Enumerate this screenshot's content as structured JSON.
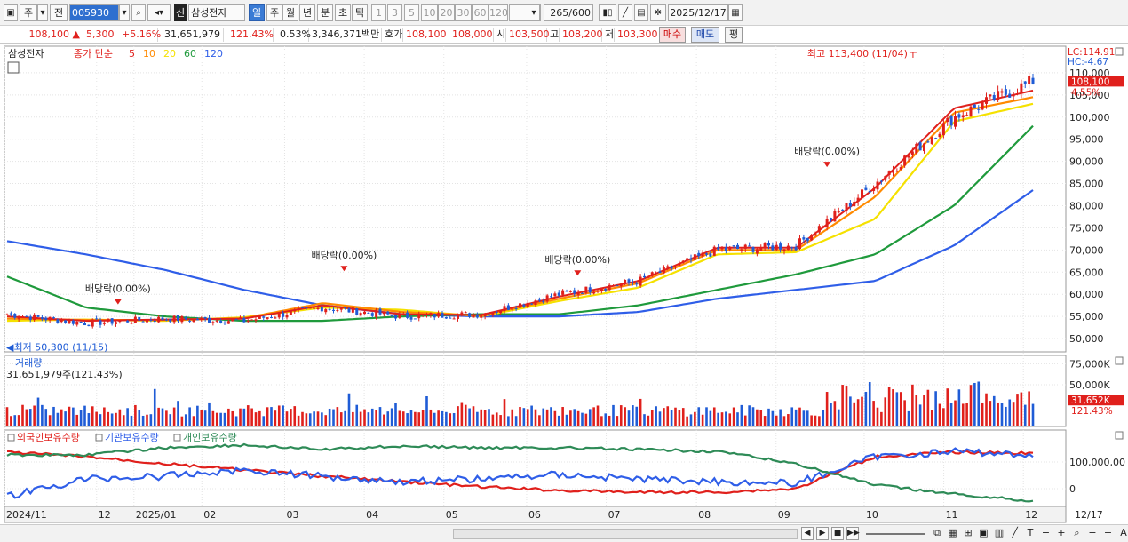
{
  "toolbar": {
    "period": "주",
    "prev": "전",
    "code": "005930",
    "name": "삼성전자",
    "tabs": [
      "일",
      "주",
      "월",
      "년",
      "분",
      "초",
      "틱"
    ],
    "minutes": [
      "1",
      "3",
      "5",
      "10",
      "20",
      "30",
      "60",
      "120"
    ],
    "count": "265",
    "count_max": "/600",
    "date": "2025/12/17"
  },
  "quote": {
    "price": "108,100",
    "arrow": "▲",
    "change": "5,300",
    "pct": "+5.16%",
    "volume": "31,651,979",
    "vol_ratio": "121.43%",
    "turnover": "0.53%",
    "amount": "3,346,371백만",
    "ask_label": "호가",
    "ask": "108,100",
    "bid": "108,000",
    "open_label": "시",
    "open": "103,500",
    "high_label": "고",
    "high": "108,200",
    "low_label": "저",
    "low": "103,300",
    "buy": "매수",
    "sell": "매도",
    "avg": "평"
  },
  "panels": {
    "price": {
      "stock": "삼성전자",
      "ma_prefix": "종가 단순",
      "ma_labels": [
        "5",
        "10",
        "20",
        "60",
        "120"
      ],
      "lc": "LC:114.91",
      "hc": "HC:-4.67",
      "current": "108,100",
      "pct": "4.55%",
      "yticks": [
        "110,000",
        "105,000",
        "100,000",
        "95,000",
        "90,000",
        "85,000",
        "80,000",
        "75,000",
        "70,000",
        "65,000",
        "60,000",
        "55,000",
        "50,000"
      ],
      "annotations": {
        "high": "최고 113,400 (11/04)",
        "low": "최저 50,300 (11/15)",
        "dividends": [
          "배당락(0.00%)",
          "배당락(0.00%)",
          "배당락(0.00%)",
          "배당락(0.00%)"
        ]
      }
    },
    "volume": {
      "title": "거래량",
      "info": "31,651,979주(121.43%)",
      "yticks": [
        "75,000K",
        "50,000K"
      ],
      "current": "31,652K",
      "pct": "121.43%"
    },
    "holdings": {
      "series": [
        "외국인보유수량",
        "기관보유수량",
        "개인보유수량"
      ],
      "yticks": [
        "100,000,00",
        "0"
      ]
    }
  },
  "xaxis": {
    "labels": [
      "2024/11",
      "12",
      "2025/01",
      "02",
      "03",
      "04",
      "05",
      "06",
      "07",
      "08",
      "09",
      "10",
      "11",
      "12"
    ],
    "end": "12/17"
  },
  "colors": {
    "up": "#e0201c",
    "down": "#1f5cd6",
    "ma5": "#e0201c",
    "ma10": "#ff8a00",
    "ma20": "#f5e100",
    "ma60": "#1f9a3c",
    "ma120": "#2f5ee8",
    "foreign": "#e0201c",
    "inst": "#2f5ee8",
    "indiv": "#2e8b57"
  },
  "chart_data": [
    {
      "type": "candlestick",
      "title": "삼성전자",
      "ylim": [
        47000,
        116000
      ],
      "x": [
        "2024-11",
        "2024-12",
        "2025-01",
        "2025-02",
        "2025-03",
        "2025-04",
        "2025-05",
        "2025-06",
        "2025-07",
        "2025-08",
        "2025-09",
        "2025-10",
        "2025-11",
        "2025-12"
      ],
      "close": [
        55500,
        53500,
        54500,
        54000,
        57000,
        55000,
        55500,
        60000,
        63000,
        70000,
        71000,
        85000,
        100000,
        108100
      ],
      "ma": {
        "ma5": [
          55000,
          54000,
          54300,
          54500,
          57500,
          55500,
          55300,
          59500,
          63000,
          70500,
          70500,
          84000,
          102000,
          106000
        ],
        "ma10": [
          54500,
          54200,
          54200,
          54600,
          58000,
          56000,
          55200,
          59000,
          62500,
          70000,
          70000,
          82000,
          101000,
          104500
        ],
        "ma20": [
          54000,
          54300,
          54000,
          54800,
          57000,
          56500,
          55000,
          58500,
          61500,
          69000,
          69500,
          77000,
          99000,
          103000
        ],
        "ma60": [
          64000,
          57000,
          55000,
          54000,
          54000,
          55000,
          55500,
          55500,
          57500,
          61000,
          64500,
          69000,
          80000,
          98000
        ],
        "ma120": [
          72000,
          69000,
          65500,
          61000,
          57500,
          55500,
          55000,
          55000,
          56000,
          59000,
          61000,
          63000,
          71000,
          83500
        ]
      },
      "high_point": {
        "label": "최고 113,400 (11/04)",
        "value": 113400
      },
      "low_point": {
        "label": "최저 50,300 (11/15)",
        "value": 50300
      }
    },
    {
      "type": "bar",
      "title": "거래량",
      "unit": "K",
      "ylim": [
        0,
        85000
      ],
      "last": 31652,
      "last_ratio": "121.43%"
    },
    {
      "type": "line",
      "series": [
        {
          "name": "외국인보유수량"
        },
        {
          "name": "기관보유수량"
        },
        {
          "name": "개인보유수량"
        }
      ],
      "yticks": [
        "100,000,00",
        "0"
      ]
    }
  ]
}
